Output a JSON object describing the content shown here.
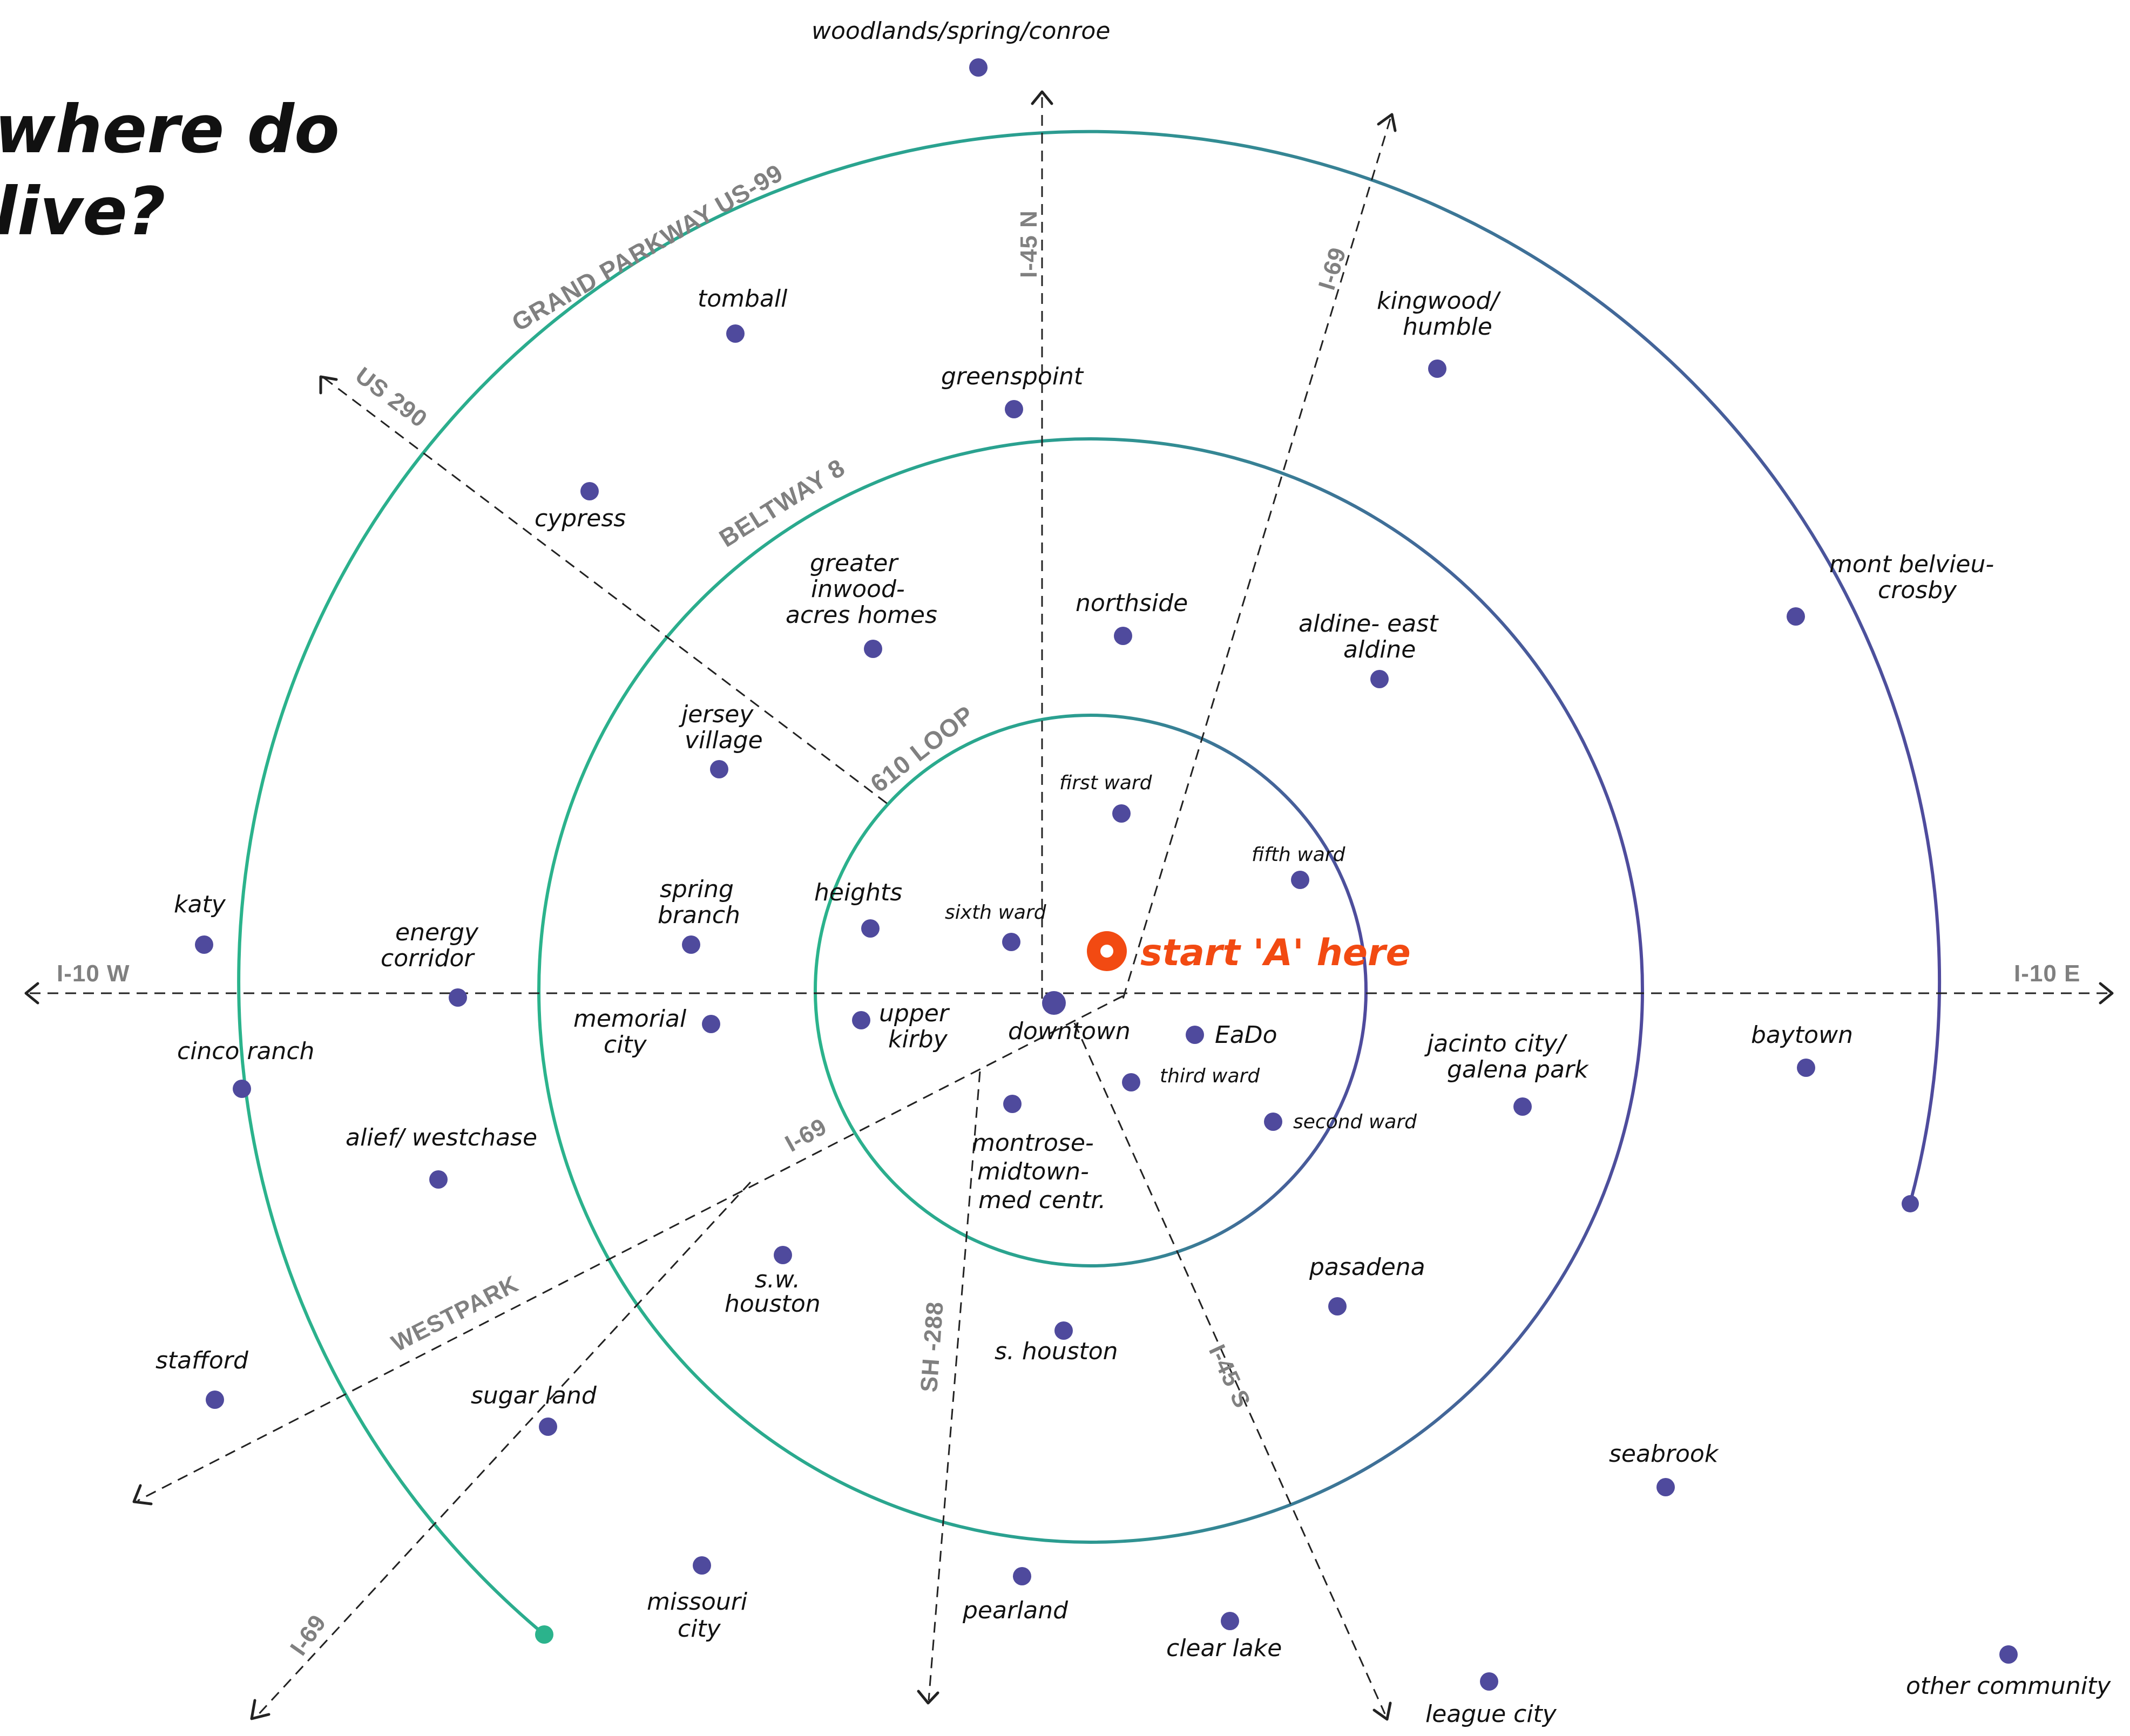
{
  "title": {
    "line1": "where do",
    "line2": "live?"
  },
  "colors": {
    "ring_start": "#2bb38c",
    "ring_end": "#4f4a9d",
    "dot": "#4f4a9d",
    "start": "#f24a12",
    "road": "#222222",
    "label_gray": "#808080"
  },
  "rings": {
    "loop610": "610 LOOP",
    "beltway8": "BELTWAY 8",
    "grand_parkway": "GRAND PARKWAY US-99"
  },
  "roads": {
    "i10w": "I-10 W",
    "i10e": "I-10 E",
    "i45n": "I-45 N",
    "i45s": "I-45 S",
    "i69n": "I-69",
    "i69sw_inner": "I-69",
    "i69sw_outer": "I-69",
    "us290": "US 290",
    "sh288": "SH -288",
    "westpark": "WESTPARK"
  },
  "start": {
    "label": "start 'A' here"
  },
  "places": {
    "woodlands": {
      "label": "woodlands/spring/conroe"
    },
    "tomball": {
      "label": "tomball"
    },
    "greenspoint": {
      "label": "greenspoint"
    },
    "kingwood": {
      "line1": "kingwood/",
      "line2": "humble"
    },
    "cypress": {
      "label": "cypress"
    },
    "mont_belvieu": {
      "line1": "mont belvieu-",
      "line2": "crosby"
    },
    "greater_inwood": {
      "line1": "greater",
      "line2": "inwood-",
      "line3": "acres homes"
    },
    "northside": {
      "label": "northside"
    },
    "aldine": {
      "line1": "aldine- east",
      "line2": "aldine"
    },
    "jersey_village": {
      "line1": "jersey",
      "line2": "village"
    },
    "first_ward": {
      "label": "first ward"
    },
    "fifth_ward": {
      "label": "fifth ward"
    },
    "katy": {
      "label": "katy"
    },
    "energy_corridor": {
      "line1": "energy",
      "line2": "corridor"
    },
    "spring_branch": {
      "line1": "spring",
      "line2": "branch"
    },
    "heights": {
      "label": "heights"
    },
    "sixth_ward": {
      "label": "sixth ward"
    },
    "memorial_city": {
      "line1": "memorial",
      "line2": "city"
    },
    "upper_kirby": {
      "line1": "upper",
      "line2": "kirby"
    },
    "downtown": {
      "label": "downtown"
    },
    "eado": {
      "label": "EaDo"
    },
    "jacinto_city": {
      "line1": "jacinto city/",
      "line2": "galena park"
    },
    "baytown": {
      "label": "baytown"
    },
    "cinco_ranch": {
      "label": "cinco ranch"
    },
    "third_ward": {
      "label": "third ward"
    },
    "second_ward": {
      "label": "second ward"
    },
    "alief": {
      "label": "alief/ westchase"
    },
    "montrose": {
      "line1": "montrose-",
      "line2": "midtown-",
      "line3": "med centr."
    },
    "sw_houston": {
      "line1": "s.w.",
      "line2": "houston"
    },
    "pasadena": {
      "label": "pasadena"
    },
    "s_houston": {
      "label": "s. houston"
    },
    "stafford": {
      "label": "stafford"
    },
    "sugar_land": {
      "label": "sugar land"
    },
    "seabrook": {
      "label": "seabrook"
    },
    "missouri_city": {
      "line1": "missouri",
      "line2": "city"
    },
    "pearland": {
      "label": "pearland"
    },
    "clear_lake": {
      "label": "clear lake"
    },
    "league_city": {
      "label": "league city"
    },
    "other_community": {
      "label": "other community"
    }
  }
}
